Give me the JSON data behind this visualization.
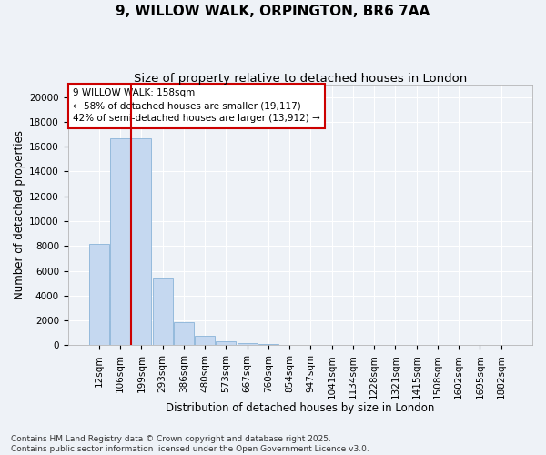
{
  "title": "9, WILLOW WALK, ORPINGTON, BR6 7AA",
  "subtitle": "Size of property relative to detached houses in London",
  "xlabel": "Distribution of detached houses by size in London",
  "ylabel": "Number of detached properties",
  "bar_values": [
    8200,
    16700,
    16700,
    5350,
    1850,
    750,
    350,
    200,
    100,
    0,
    0,
    0,
    0,
    0,
    0,
    0,
    0,
    0,
    0,
    0
  ],
  "x_labels": [
    "12sqm",
    "106sqm",
    "199sqm",
    "293sqm",
    "386sqm",
    "480sqm",
    "573sqm",
    "667sqm",
    "760sqm",
    "854sqm",
    "947sqm",
    "1041sqm",
    "1134sqm",
    "1228sqm",
    "1321sqm",
    "1415sqm",
    "1508sqm",
    "1602sqm",
    "1695sqm",
    "1882sqm"
  ],
  "bar_color": "#c5d8f0",
  "bar_edge_color": "#8ab4d8",
  "vline_x": 1.5,
  "vline_color": "#cc0000",
  "annotation_text": "9 WILLOW WALK: 158sqm\n← 58% of detached houses are smaller (19,117)\n42% of semi-detached houses are larger (13,912) →",
  "ylim": [
    0,
    21000
  ],
  "yticks": [
    0,
    2000,
    4000,
    6000,
    8000,
    10000,
    12000,
    14000,
    16000,
    18000,
    20000
  ],
  "footer_line1": "Contains HM Land Registry data © Crown copyright and database right 2025.",
  "footer_line2": "Contains public sector information licensed under the Open Government Licence v3.0.",
  "bg_color": "#eef2f7",
  "grid_color": "#ffffff",
  "title_fontsize": 11,
  "subtitle_fontsize": 9.5,
  "axis_label_fontsize": 8.5,
  "tick_fontsize": 7.5,
  "footer_fontsize": 6.5
}
